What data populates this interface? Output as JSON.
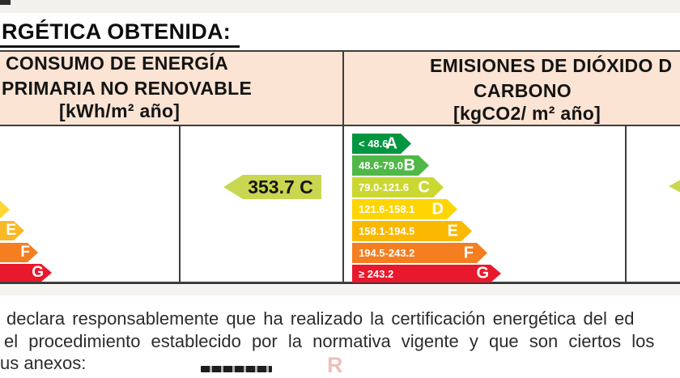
{
  "title": "RGÉTICA OBTENIDA:",
  "colors": {
    "header_bg": "#fbe4d3",
    "border": "#3d3d3d",
    "rating_arrow": "#c9d650"
  },
  "consumo": {
    "header_line1": "CONSUMO DE ENERGÍA",
    "header_line2": "PRIMARIA NO RENOVABLE",
    "header_line3": "[kWh/m² año]",
    "rating_label": "353.7 C",
    "rating_color": "#c9d650",
    "scale_partial": [
      {
        "letter": "",
        "color": "#ffd633"
      },
      {
        "letter": "E",
        "color": "#f9b826"
      },
      {
        "letter": "F",
        "color": "#f57e20"
      },
      {
        "letter": "G",
        "color": "#e8192c"
      }
    ]
  },
  "emisiones": {
    "header_line1": "EMISIONES DE DIÓXIDO D",
    "header_line2": "CARBONO",
    "header_line3": "[kgCO2/ m² año]",
    "scale": [
      {
        "range": "< 48.6",
        "letter": "A",
        "color": "#009640"
      },
      {
        "range": "48.6-79.0",
        "letter": "B",
        "color": "#50b848"
      },
      {
        "range": "79.0-121.6",
        "letter": "C",
        "color": "#cbd832"
      },
      {
        "range": "121.6-158.1",
        "letter": "D",
        "color": "#ffd500"
      },
      {
        "range": "158.1-194.5",
        "letter": "E",
        "color": "#fab900"
      },
      {
        "range": "194.5-243.2",
        "letter": "F",
        "color": "#f57e20"
      },
      {
        "range": "≥ 243.2",
        "letter": "G",
        "color": "#e8192c"
      }
    ],
    "rating_partial_color": "#c9d650"
  },
  "declaration": {
    "line1": "declara responsablemente que ha realizado la certificación energética del ed",
    "line2": "el procedimiento establecido por la normativa vigente y que son ciertos los",
    "line3": "us anexos:"
  },
  "watermark_fragment": "R"
}
